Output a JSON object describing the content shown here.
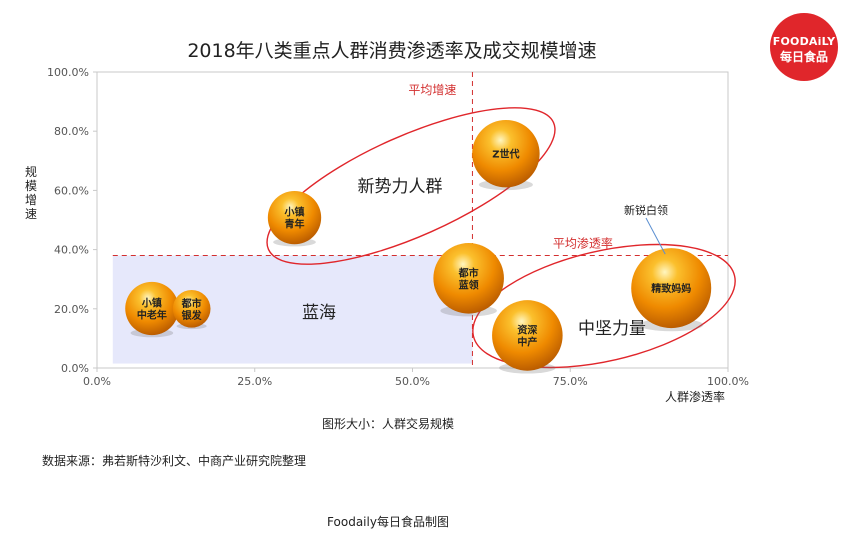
{
  "title": "2018年八类重点人群消费渗透率及成交规模增速",
  "logo": {
    "line1": "FOODAiLY",
    "line2": "每日食品",
    "color": "#e0262b"
  },
  "captions": {
    "size_note": "图形大小：人群交易规模",
    "source": "数据来源：弗若斯特沙利文、中商产业研究院整理",
    "made_by": "Foodaily每日食品制图"
  },
  "chart_data": {
    "type": "scatter",
    "xlabel": "人群渗透率",
    "ylabel": "规模增速",
    "xlim": [
      0,
      100
    ],
    "ylim": [
      0,
      100
    ],
    "x_ticks": [
      "0.0%",
      "25.0%",
      "50.0%",
      "75.0%",
      "100.0%"
    ],
    "y_ticks": [
      "0.0%",
      "20.0%",
      "40.0%",
      "60.0%",
      "80.0%",
      "100.0%"
    ],
    "grid": false,
    "reference_lines": [
      {
        "name": "平均增速",
        "axis": "x",
        "value": 59.5
      },
      {
        "name": "平均渗透率",
        "axis": "y",
        "value": 38
      }
    ],
    "blue_ocean_label": "蓝海",
    "groups": [
      {
        "name": "新势力人群"
      },
      {
        "name": "中坚力量"
      }
    ],
    "points": [
      {
        "label": "小镇中老年",
        "x": 8.7,
        "y": 20.1,
        "size": 2.0
      },
      {
        "label": "都市银发",
        "x": 15,
        "y": 20.0,
        "size": 1.0
      },
      {
        "label": "小镇青年",
        "x": 31.3,
        "y": 50.8,
        "size": 2.0
      },
      {
        "label": "都市蓝领",
        "x": 58.9,
        "y": 30.3,
        "size": 3.5
      },
      {
        "label": "Z世代",
        "x": 64.8,
        "y": 72.4,
        "size": 3.2
      },
      {
        "label": "资深中产",
        "x": 68.2,
        "y": 11.0,
        "size": 3.5
      },
      {
        "label": "精致妈妈",
        "x": 91.0,
        "y": 27.0,
        "size": 4.5
      }
    ],
    "callout": {
      "text": "新锐白领",
      "target": "精致妈妈"
    }
  }
}
